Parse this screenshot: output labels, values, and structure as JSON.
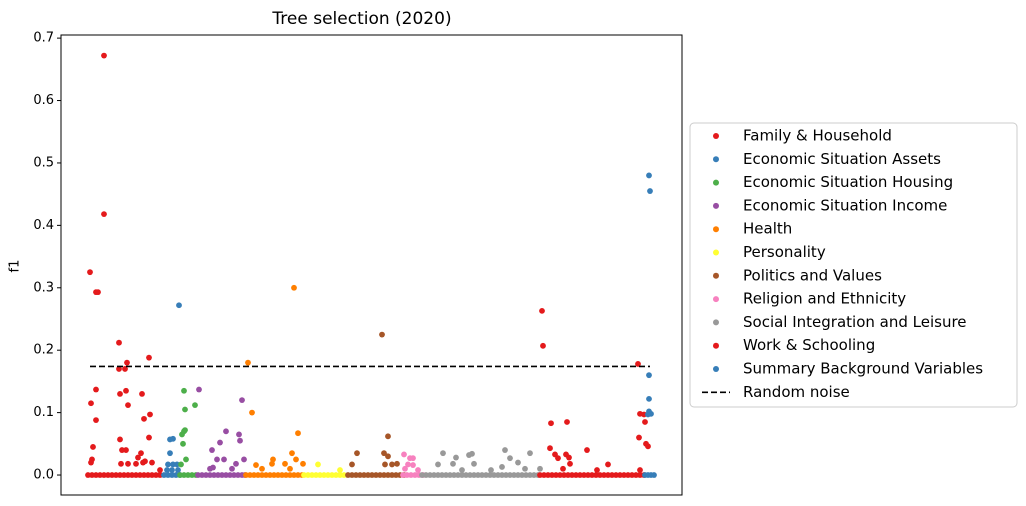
{
  "chart_data": {
    "type": "scatter",
    "title": "Tree selection (2020)",
    "y_label": "f1",
    "xlim": [
      -27,
      594
    ],
    "ylim": [
      -0.032,
      0.705
    ],
    "yticks": [
      {
        "value": 0,
        "label": "0.0"
      },
      0.1,
      0.2,
      0.3,
      0.4,
      0.5,
      0.6,
      0.7
    ],
    "legend": "right",
    "series": [
      {
        "name": "Family & Household",
        "color": "#e41a1c",
        "x": [
          2,
          8,
          10,
          16,
          16,
          3,
          4,
          3,
          5,
          8,
          8,
          31,
          31,
          37,
          39,
          38,
          32,
          40,
          54,
          61,
          62,
          32,
          34,
          38,
          56,
          61,
          50,
          53,
          55,
          57,
          33,
          40,
          48,
          64,
          72,
          0,
          4,
          8,
          12,
          16,
          20,
          24,
          28,
          32,
          36,
          40,
          44,
          48,
          52,
          56,
          60,
          64,
          68,
          72
        ],
        "values": [
          0.325,
          0.293,
          0.293,
          0.672,
          0.418,
          0.115,
          0.025,
          0.02,
          0.045,
          0.137,
          0.088,
          0.212,
          0.17,
          0.17,
          0.18,
          0.135,
          0.13,
          0.112,
          0.13,
          0.188,
          0.097,
          0.057,
          0.04,
          0.04,
          0.09,
          0.06,
          0.028,
          0.035,
          0.02,
          0.022,
          0.018,
          0.018,
          0.018,
          0.02,
          0.008,
          0,
          0,
          0,
          0,
          0,
          0,
          0,
          0,
          0,
          0,
          0,
          0,
          0,
          0,
          0,
          0,
          0,
          0,
          0
        ]
      },
      {
        "name": "Economic Situation Assets",
        "color": "#377eb8",
        "x": [
          91,
          82,
          85,
          82,
          80,
          85,
          89,
          79,
          84,
          90,
          76,
          80,
          84,
          88,
          92
        ],
        "values": [
          0.272,
          0.057,
          0.058,
          0.035,
          0.017,
          0.017,
          0.017,
          0.008,
          0.008,
          0.008,
          0,
          0,
          0,
          0,
          0
        ]
      },
      {
        "name": "Economic Situation Housing",
        "color": "#4daf4a",
        "x": [
          96,
          97,
          96,
          94,
          97,
          95,
          107,
          98,
          93,
          92,
          96,
          100,
          104,
          108
        ],
        "values": [
          0.135,
          0.105,
          0.07,
          0.065,
          0.072,
          0.05,
          0.112,
          0.025,
          0.017,
          0,
          0,
          0,
          0,
          0
        ]
      },
      {
        "name": "Economic Situation Income",
        "color": "#984ea3",
        "x": [
          111,
          154,
          138,
          151,
          152,
          132,
          124,
          136,
          129,
          156,
          148,
          144,
          125,
          122,
          110,
          114,
          118,
          122,
          126,
          130,
          134,
          138,
          142,
          146,
          150,
          154,
          157
        ],
        "values": [
          0.137,
          0.12,
          0.07,
          0.065,
          0.055,
          0.052,
          0.04,
          0.025,
          0.025,
          0.025,
          0.018,
          0.01,
          0.012,
          0.01,
          0,
          0,
          0,
          0,
          0,
          0,
          0,
          0,
          0,
          0,
          0,
          0,
          0
        ]
      },
      {
        "name": "Health",
        "color": "#ff7f00",
        "x": [
          206,
          160,
          164,
          210,
          204,
          208,
          185,
          184,
          168,
          174,
          215,
          197,
          202,
          158,
          162,
          166,
          170,
          174,
          178,
          182,
          186,
          190,
          194,
          198,
          202,
          206,
          210,
          214
        ],
        "values": [
          0.3,
          0.18,
          0.1,
          0.067,
          0.035,
          0.025,
          0.025,
          0.018,
          0.016,
          0.01,
          0.018,
          0.018,
          0.01,
          0,
          0,
          0,
          0,
          0,
          0,
          0,
          0,
          0,
          0,
          0,
          0,
          0,
          0,
          0
        ]
      },
      {
        "name": "Personality",
        "color": "#ffff33",
        "x": [
          230,
          252,
          216,
          220,
          224,
          228,
          232,
          236,
          240,
          244,
          248,
          252,
          256
        ],
        "values": [
          0.017,
          0.008,
          0,
          0,
          0,
          0,
          0,
          0,
          0,
          0,
          0,
          0,
          0
        ]
      },
      {
        "name": "Politics and Values",
        "color": "#a65628",
        "x": [
          294,
          300,
          269,
          296,
          300,
          264,
          297,
          304,
          309,
          260,
          264,
          268,
          272,
          276,
          280,
          284,
          288,
          292,
          296,
          300,
          304,
          308,
          312,
          316
        ],
        "values": [
          0.225,
          0.062,
          0.035,
          0.035,
          0.03,
          0.017,
          0.017,
          0.017,
          0.018,
          0,
          0,
          0,
          0,
          0,
          0,
          0,
          0,
          0,
          0,
          0,
          0,
          0,
          0,
          0
        ]
      },
      {
        "name": "Religion and Ethnicity",
        "color": "#f781bf",
        "x": [
          316,
          322,
          325,
          320,
          325,
          317,
          330,
          315,
          319,
          323,
          327,
          331,
          335
        ],
        "values": [
          0.033,
          0.027,
          0.027,
          0.017,
          0.016,
          0.01,
          0.008,
          0,
          0,
          0,
          0,
          0,
          0
        ]
      },
      {
        "name": "Social Integration and Leisure",
        "color": "#999999",
        "x": [
          355,
          381,
          384,
          417,
          368,
          430,
          422,
          442,
          365,
          350,
          386,
          403,
          414,
          437,
          452,
          374,
          334,
          338,
          342,
          346,
          350,
          354,
          358,
          362,
          366,
          370,
          374,
          378,
          382,
          386,
          390,
          394,
          398,
          402,
          406,
          410,
          414,
          418,
          422,
          426,
          430,
          434,
          438,
          442,
          446,
          450
        ],
        "values": [
          0.035,
          0.032,
          0.034,
          0.04,
          0.028,
          0.02,
          0.027,
          0.035,
          0.018,
          0.017,
          0.018,
          0.008,
          0.013,
          0.01,
          0.01,
          0.008,
          0,
          0,
          0,
          0,
          0,
          0,
          0,
          0,
          0,
          0,
          0,
          0,
          0,
          0,
          0,
          0,
          0,
          0,
          0,
          0,
          0,
          0,
          0,
          0,
          0,
          0,
          0,
          0,
          0,
          0
        ]
      },
      {
        "name": "Work & Schooling",
        "color": "#e41a1c",
        "x": [
          454,
          455,
          550,
          556,
          552,
          551,
          557,
          558,
          560,
          463,
          479,
          462,
          467,
          470,
          478,
          481,
          475,
          482,
          499,
          520,
          509,
          552,
          452,
          456,
          460,
          464,
          468,
          472,
          476,
          480,
          484,
          488,
          492,
          496,
          500,
          504,
          508,
          512,
          516,
          520,
          524,
          528,
          532,
          536,
          540,
          544,
          548,
          552,
          556
        ],
        "values": [
          0.263,
          0.207,
          0.178,
          0.097,
          0.098,
          0.06,
          0.085,
          0.05,
          0.046,
          0.083,
          0.085,
          0.043,
          0.033,
          0.027,
          0.033,
          0.028,
          0.01,
          0.018,
          0.04,
          0.017,
          0.008,
          0.008,
          0,
          0,
          0,
          0,
          0,
          0,
          0,
          0,
          0,
          0,
          0,
          0,
          0,
          0,
          0,
          0,
          0,
          0,
          0,
          0,
          0,
          0,
          0,
          0,
          0,
          0,
          0
        ]
      },
      {
        "name": "Summary Background Variables",
        "color": "#377eb8",
        "x": [
          561,
          562,
          561,
          561,
          561,
          563,
          560,
          557,
          560,
          563,
          566
        ],
        "values": [
          0.48,
          0.455,
          0.16,
          0.122,
          0.102,
          0.098,
          0.097,
          0,
          0,
          0,
          0
        ]
      },
      {
        "name": "Random noise",
        "type": "line",
        "dash": true,
        "color": "#000000",
        "x": [
          2,
          562
        ],
        "values": [
          0.174,
          0.174
        ]
      }
    ]
  }
}
